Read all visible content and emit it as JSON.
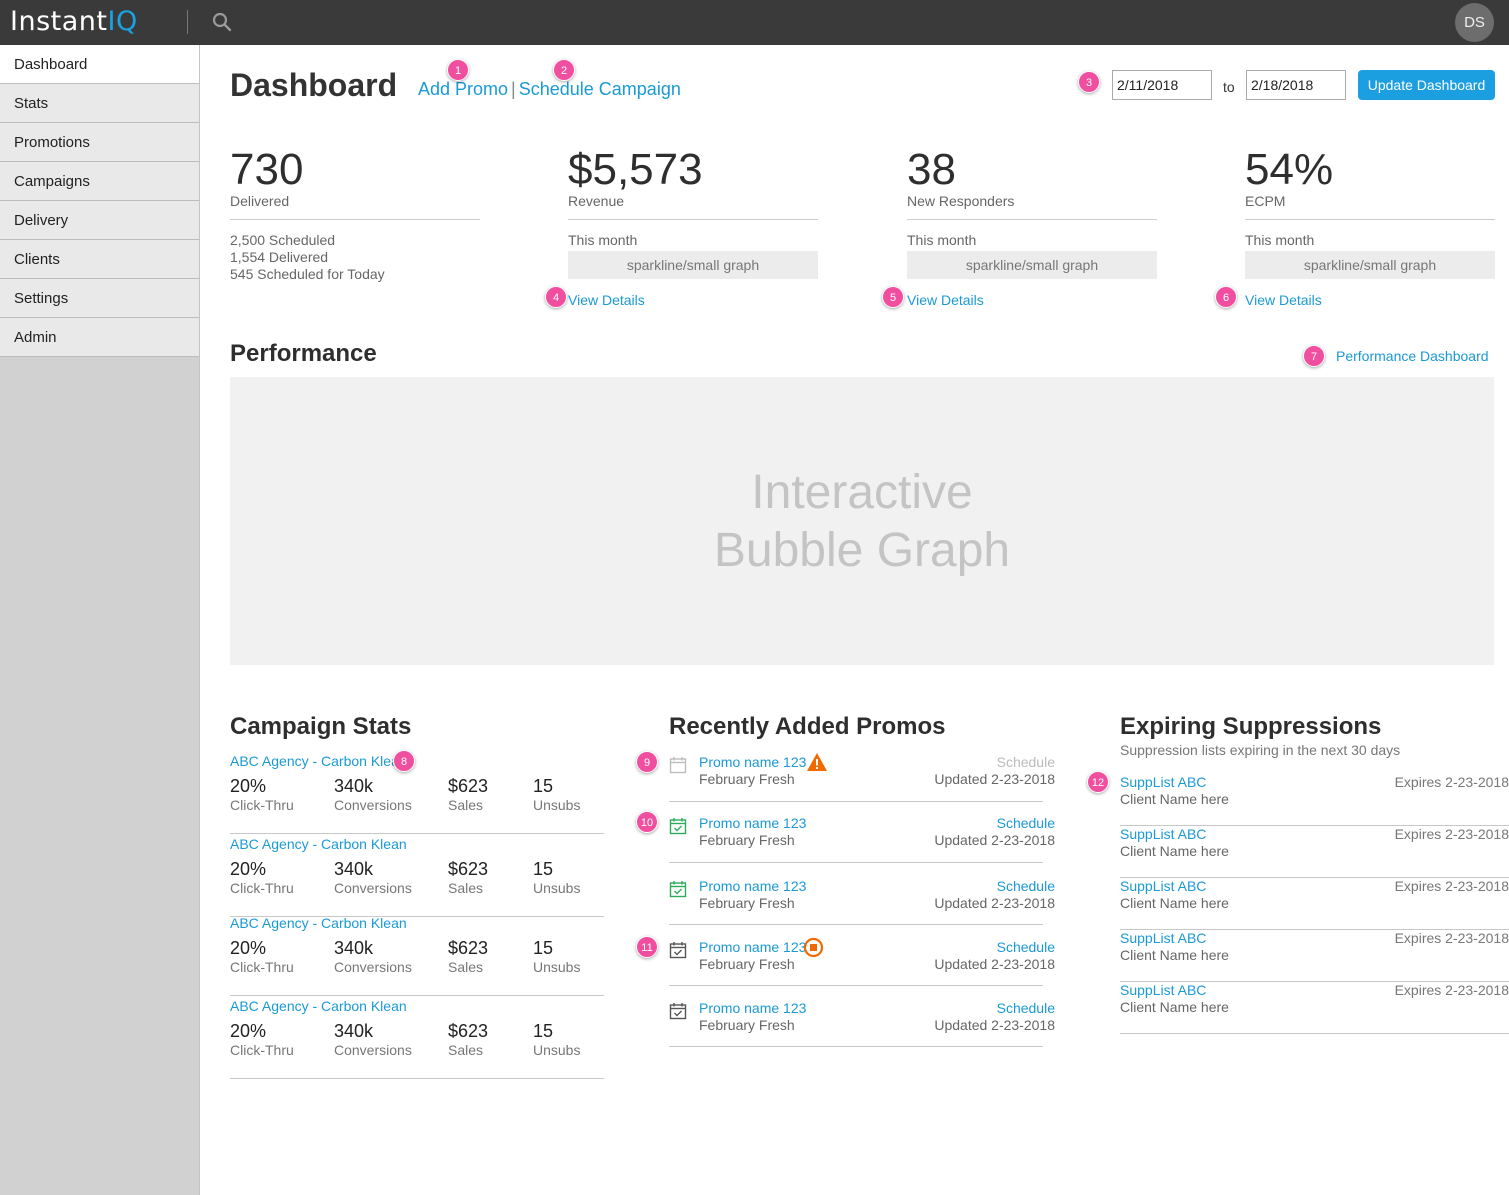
{
  "app": {
    "logo_main": "Instant",
    "logo_accent": "IQ",
    "avatar_initials": "DS"
  },
  "sidebar": {
    "items": [
      {
        "label": "Dashboard"
      },
      {
        "label": "Stats"
      },
      {
        "label": "Promotions"
      },
      {
        "label": "Campaigns"
      },
      {
        "label": "Delivery"
      },
      {
        "label": "Clients"
      },
      {
        "label": "Settings"
      },
      {
        "label": "Admin"
      }
    ]
  },
  "header": {
    "title": "Dashboard",
    "add_promo": "Add Promo",
    "separator": "|",
    "schedule_campaign": "Schedule Campaign",
    "date_from": "2/11/2018",
    "date_to_label": "to",
    "date_to": "2/18/2018",
    "update_button": "Update Dashboard"
  },
  "stats": [
    {
      "value": "730",
      "label": "Delivered",
      "details": [
        "2,500 Scheduled",
        "1,554 Delivered",
        "545 Scheduled for Today"
      ]
    },
    {
      "value": "$5,573",
      "label": "Revenue",
      "period": "This month",
      "sparkline": "sparkline/small graph",
      "link": "View Details"
    },
    {
      "value": "38",
      "label": "New Responders",
      "period": "This month",
      "sparkline": "sparkline/small graph",
      "link": "View Details"
    },
    {
      "value": "54%",
      "label": "ECPM",
      "period": "This month",
      "sparkline": "sparkline/small graph",
      "link": "View Details"
    }
  ],
  "performance": {
    "title": "Performance",
    "dashboard_link": "Performance Dashboard",
    "placeholder_line1": "Interactive",
    "placeholder_line2": "Bubble Graph"
  },
  "campaign_stats": {
    "title": "Campaign Stats",
    "rows": [
      {
        "name": "ABC Agency - Carbon Klean",
        "ctr": "20%",
        "ctr_label": "Click-Thru",
        "conv": "340k",
        "conv_label": "Conversions",
        "sales": "$623",
        "sales_label": "Sales",
        "unsubs": "15",
        "unsubs_label": "Unsubs"
      },
      {
        "name": "ABC Agency - Carbon Klean",
        "ctr": "20%",
        "ctr_label": "Click-Thru",
        "conv": "340k",
        "conv_label": "Conversions",
        "sales": "$623",
        "sales_label": "Sales",
        "unsubs": "15",
        "unsubs_label": "Unsubs"
      },
      {
        "name": "ABC Agency - Carbon Klean",
        "ctr": "20%",
        "ctr_label": "Click-Thru",
        "conv": "340k",
        "conv_label": "Conversions",
        "sales": "$623",
        "sales_label": "Sales",
        "unsubs": "15",
        "unsubs_label": "Unsubs"
      },
      {
        "name": "ABC Agency - Carbon Klean",
        "ctr": "20%",
        "ctr_label": "Click-Thru",
        "conv": "340k",
        "conv_label": "Conversions",
        "sales": "$623",
        "sales_label": "Sales",
        "unsubs": "15",
        "unsubs_label": "Unsubs"
      }
    ]
  },
  "promos": {
    "title": "Recently Added Promos",
    "rows": [
      {
        "name": "Promo name 123",
        "sub": "February Fresh",
        "action": "Schedule",
        "updated": "Updated 2-23-2018",
        "icon": "calendar-empty-icon",
        "status_icon": "warning-icon",
        "action_enabled": false
      },
      {
        "name": "Promo name 123",
        "sub": "February Fresh",
        "action": "Schedule",
        "updated": "Updated 2-23-2018",
        "icon": "calendar-check-icon",
        "action_enabled": true
      },
      {
        "name": "Promo name 123",
        "sub": "February Fresh",
        "action": "Schedule",
        "updated": "Updated 2-23-2018",
        "icon": "calendar-check-icon",
        "action_enabled": true
      },
      {
        "name": "Promo name 123",
        "sub": "February Fresh",
        "action": "Schedule",
        "updated": "Updated 2-23-2018",
        "icon": "calendar-check-icon",
        "status_icon": "stop-icon",
        "action_enabled": true
      },
      {
        "name": "Promo name 123",
        "sub": "February Fresh",
        "action": "Schedule",
        "updated": "Updated 2-23-2018",
        "icon": "calendar-check-icon",
        "action_enabled": true
      }
    ]
  },
  "suppressions": {
    "title": "Expiring Suppressions",
    "description": "Suppression lists expiring in the next 30 days",
    "rows": [
      {
        "name": "SuppList ABC",
        "client": "Client Name here",
        "expires": "Expires 2-23-2018"
      },
      {
        "name": "SuppList ABC",
        "client": "Client Name here",
        "expires": "Expires 2-23-2018"
      },
      {
        "name": "SuppList ABC",
        "client": "Client Name here",
        "expires": "Expires 2-23-2018"
      },
      {
        "name": "SuppList ABC",
        "client": "Client Name here",
        "expires": "Expires 2-23-2018"
      },
      {
        "name": "SuppList ABC",
        "client": "Client Name here",
        "expires": "Expires 2-23-2018"
      }
    ]
  },
  "annotations": [
    "1",
    "2",
    "3",
    "4",
    "5",
    "6",
    "7",
    "8",
    "9",
    "10",
    "11",
    "12"
  ],
  "colors": {
    "topbar": "#3a3a3a",
    "accent": "#1a9ad6",
    "badge": "#f04fa0",
    "success": "#2eaa5c",
    "warning": "#f06a00"
  }
}
